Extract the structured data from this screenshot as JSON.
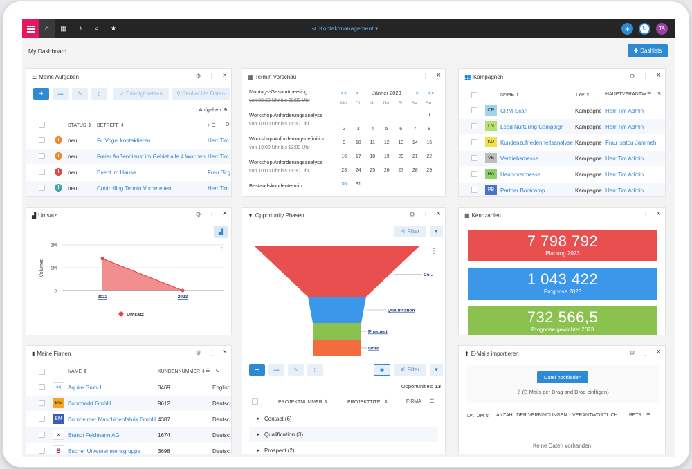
{
  "topbar": {
    "app_title": "Kontaktmanagement",
    "avatar": "TA"
  },
  "breadcrumb": "My Dashboard",
  "dashlets_label": "Dashlets",
  "colors": {
    "accent": "#e6175f",
    "blue": "#2d8ad3",
    "red": "#ea4f4f",
    "kpi_red": "#ea4f4f",
    "kpi_blue": "#3a97ea",
    "kpi_green": "#8bc14f"
  },
  "aufgaben": {
    "title": "Meine Aufgaben",
    "erledigt": "Erledigt setzen",
    "beobachte": "Beobachte Daten",
    "count_label": "Aufgaben:",
    "count": "9",
    "headers": {
      "status": "STATUS",
      "betreff": "BETREFF",
      "d": "D"
    },
    "rows": [
      {
        "status": "neu",
        "betreff": "Fr. Vogel kontaktieren",
        "who": "Herr Tim",
        "color": "#f08a24"
      },
      {
        "status": "neu",
        "betreff": "Freier Außendienst im Gebiet alle 4 Wochen",
        "who": "Herr Tim",
        "color": "#f08a24"
      },
      {
        "status": "neu",
        "betreff": "Event im Hause",
        "who": "Frau Birg",
        "color": "#e84545"
      },
      {
        "status": "neu",
        "betreff": "Controlling Termin Vorbereiten",
        "who": "Herr Tim",
        "color": "#4aa3a0"
      }
    ]
  },
  "termin": {
    "title": "Termin Vorschau",
    "events": [
      {
        "name": "Montags-Gesamtmeeting",
        "time": "von 08:30 Uhr bis 09:00 Uhr",
        "struck": true
      },
      {
        "name": "Workshop Anforderungsanalyse",
        "time": "von 10:00 Uhr bis 11:30 Uhr",
        "struck": false
      },
      {
        "name": "Workshop Anforderungsdefinition",
        "time": "von 10:00 Uhr bis 12:00 Uhr",
        "struck": false
      },
      {
        "name": "Workshop Anforderungsanalyse",
        "time": "von 10:00 Uhr bis 11:30 Uhr",
        "struck": false
      },
      {
        "name": "Bestandskundentermin",
        "time": "",
        "struck": false
      }
    ],
    "month": "Jänner 2023",
    "nav": {
      "prev2": "<<",
      "prev": "<",
      "next": ">",
      "next2": ">>"
    },
    "weekdays": [
      "Mo.",
      "Di.",
      "Mi.",
      "Do.",
      "Fr.",
      "Sa.",
      "So."
    ],
    "weeks": [
      [
        "",
        "",
        "",
        "",
        "",
        "",
        "1"
      ],
      [
        "2",
        "3",
        "4",
        "5",
        "6",
        "7",
        "8"
      ],
      [
        "9",
        "10",
        "11",
        "12",
        "13",
        "14",
        "15"
      ],
      [
        "16",
        "17",
        "18",
        "19",
        "20",
        "21",
        "22"
      ],
      [
        "23",
        "24",
        "25",
        "26",
        "27",
        "28",
        "29"
      ],
      [
        "30",
        "31",
        "",
        "",
        "",
        "",
        ""
      ]
    ]
  },
  "kampagnen": {
    "title": "Kampagnen",
    "headers": {
      "name": "NAME",
      "typ": "TYP",
      "haupt": "HAUPTVERANTW",
      "s": "S"
    },
    "rows": [
      {
        "code": "CR",
        "name": "CRM-Scan",
        "typ": "Kampagne",
        "who": "Herr Tim Admin",
        "color": "#9fd4ec"
      },
      {
        "code": "LN",
        "name": "Lead Nurturing Campaign",
        "typ": "Kampagne",
        "who": "Herr Tim Admin",
        "color": "#b8de6f"
      },
      {
        "code": "KU",
        "name": "Kundenzufriedenheitsanalyse",
        "typ": "Kampagne",
        "who": "Frau Isatou Jammeh",
        "color": "#f1e14b"
      },
      {
        "code": "VE",
        "name": "Vertriebsmesse",
        "typ": "Kampagne",
        "who": "Herr Tim Admin",
        "color": "#bdbdbd"
      },
      {
        "code": "HA",
        "name": "Hannovermesse",
        "typ": "Kampagne",
        "who": "Herr Tim Admin",
        "color": "#8fd06a"
      },
      {
        "code": "PB",
        "name": "Partner Bootcamp",
        "typ": "Kampagne",
        "who": "Herr Tim Admin",
        "color": "#4b74c4"
      }
    ]
  },
  "umsatz": {
    "title": "Umsatz",
    "chart_data": {
      "type": "area",
      "x": [
        "2022",
        "2023"
      ],
      "series": [
        {
          "name": "Umsatz",
          "values": [
            1400000,
            0
          ]
        }
      ],
      "ylabel": "Volumen",
      "yticks": [
        "0",
        "1M",
        "2M"
      ],
      "ylim": [
        0,
        2000000
      ],
      "legend": "bottom"
    }
  },
  "phasen": {
    "title": "Opportunity Phasen",
    "filter": "Filter",
    "chart_data": {
      "type": "funnel",
      "categories": [
        "Co...",
        "Qualification",
        "Prospect",
        "Offer"
      ],
      "colors": [
        "#ea4f4f",
        "#3a97ea",
        "#8bc14f",
        "#f26d3d"
      ],
      "values": [
        6,
        3,
        2,
        1
      ]
    },
    "count_label": "Opportunities:",
    "count": "13",
    "headers": {
      "nr": "PROJEKTNUMMER",
      "titel": "PROJEKTTITEL",
      "firma": "FIRMA"
    },
    "groups": [
      "Contact (6)",
      "Qualification (3)",
      "Prospect (2)"
    ]
  },
  "kennzahlen": {
    "title": "Kennzahlen",
    "items": [
      {
        "value": "7 798 792",
        "label": "Planung 2023",
        "color": "#ea4f4f"
      },
      {
        "value": "1 043 422",
        "label": "Prognose 2023",
        "color": "#3a97ea"
      },
      {
        "value": "732 566,5",
        "label": "Prognose gewichtet 2023",
        "color": "#8bc14f"
      }
    ]
  },
  "firmen": {
    "title": "Meine Firmen",
    "headers": {
      "name": "NAME",
      "nr": "KUNDENNUMMER",
      "c": "C"
    },
    "rows": [
      {
        "logo": "aq",
        "name": "Aquire GmbH",
        "nr": "3469",
        "c": "Englisc",
        "logo_color": "#ffffff"
      },
      {
        "logo": "BG",
        "name": "Bohrmarkt GmbH",
        "nr": "9612",
        "c": "Deutsc",
        "logo_color": "#f5a623"
      },
      {
        "logo": "BM",
        "name": "Bornheimer Maschinenfabrik GmbH",
        "nr": "4387",
        "c": "Deutsc",
        "logo_color": "#3b5bb5"
      },
      {
        "logo": "✕",
        "name": "Brandt Feldmann AG",
        "nr": "1674",
        "c": "Deutsc",
        "logo_color": "#ffffff"
      },
      {
        "logo": "B",
        "name": "Bucher Unternehmensgruppe",
        "nr": "3698",
        "c": "Deutsc",
        "logo_color": "#ffffff"
      }
    ]
  },
  "emails": {
    "title": "E-Mails importieren",
    "upload": "Datei hochladen",
    "drop": "(E-Mails per Drag and Drop einfügen)",
    "headers": {
      "datum": "DATUM",
      "anzahl": "ANZAHL DER VERBINDUNGEN",
      "verantw": "VERANTWORTLICH",
      "betr": "BETR"
    },
    "empty": "Keine Daten vorhanden"
  }
}
